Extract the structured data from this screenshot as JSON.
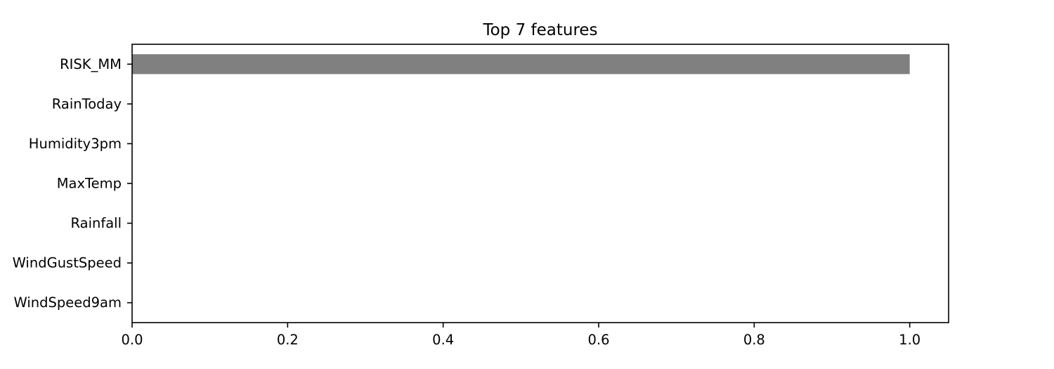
{
  "chart_data": {
    "type": "bar",
    "orientation": "horizontal",
    "title": "Top 7 features",
    "xlabel": "",
    "ylabel": "",
    "categories": [
      "RISK_MM",
      "RainToday",
      "Humidity3pm",
      "MaxTemp",
      "Rainfall",
      "WindGustSpeed",
      "WindSpeed9am"
    ],
    "values": [
      1.0,
      0.0,
      0.0,
      0.0,
      0.0,
      0.0,
      0.0
    ],
    "xlim": [
      0,
      1.05
    ],
    "xticks": [
      0.0,
      0.2,
      0.4,
      0.6,
      0.8,
      1.0
    ],
    "xtick_labels": [
      "0.0",
      "0.2",
      "0.4",
      "0.6",
      "0.8",
      "1.0"
    ],
    "grid": false,
    "legend": "none",
    "bar_color": "#808080"
  }
}
